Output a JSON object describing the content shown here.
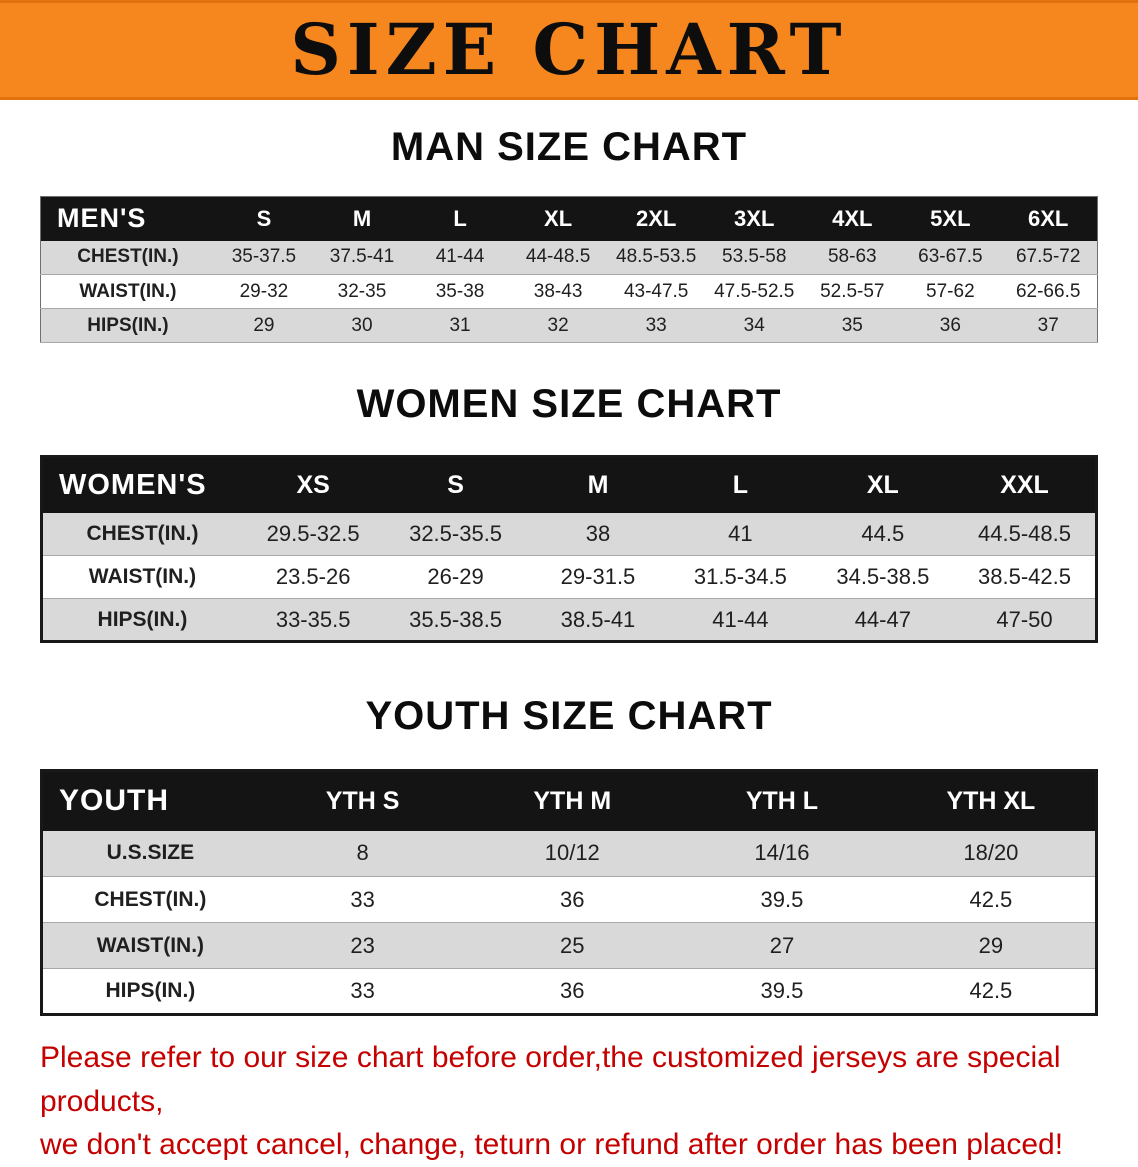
{
  "banner": {
    "title": "SIZE CHART"
  },
  "colors": {
    "banner-bg": "#F6861E",
    "banner-edge": "#E2720D",
    "header-bg": "#141414",
    "header-text": "#FFFFFF",
    "stripe": "#D9D9D9",
    "notice-red": "#C40000"
  },
  "sections": {
    "men": {
      "heading": "MAN SIZE CHART",
      "table": {
        "header": [
          "MEN'S",
          "S",
          "M",
          "L",
          "XL",
          "2XL",
          "3XL",
          "4XL",
          "5XL",
          "6XL"
        ],
        "rows": [
          {
            "label": "CHEST(IN.)",
            "values": [
              "35-37.5",
              "37.5-41",
              "41-44",
              "44-48.5",
              "48.5-53.5",
              "53.5-58",
              "58-63",
              "63-67.5",
              "67.5-72"
            ]
          },
          {
            "label": "WAIST(IN.)",
            "values": [
              "29-32",
              "32-35",
              "35-38",
              "38-43",
              "43-47.5",
              "47.5-52.5",
              "52.5-57",
              "57-62",
              "62-66.5"
            ]
          },
          {
            "label": "HIPS(IN.)",
            "values": [
              "29",
              "30",
              "31",
              "32",
              "33",
              "34",
              "35",
              "36",
              "37"
            ]
          }
        ]
      }
    },
    "women": {
      "heading": "WOMEN SIZE CHART",
      "table": {
        "header": [
          "WOMEN'S",
          "XS",
          "S",
          "M",
          "L",
          "XL",
          "XXL"
        ],
        "rows": [
          {
            "label": "CHEST(IN.)",
            "values": [
              "29.5-32.5",
              "32.5-35.5",
              "38",
              "41",
              "44.5",
              "44.5-48.5"
            ]
          },
          {
            "label": "WAIST(IN.)",
            "values": [
              "23.5-26",
              "26-29",
              "29-31.5",
              "31.5-34.5",
              "34.5-38.5",
              "38.5-42.5"
            ]
          },
          {
            "label": "HIPS(IN.)",
            "values": [
              "33-35.5",
              "35.5-38.5",
              "38.5-41",
              "41-44",
              "44-47",
              "47-50"
            ]
          }
        ]
      }
    },
    "youth": {
      "heading": "YOUTH SIZE CHART",
      "table": {
        "header": [
          "YOUTH",
          "YTH S",
          "YTH M",
          "YTH L",
          "YTH XL"
        ],
        "rows": [
          {
            "label": "U.S.SIZE",
            "values": [
              "8",
              "10/12",
              "14/16",
              "18/20"
            ]
          },
          {
            "label": "CHEST(IN.)",
            "values": [
              "33",
              "36",
              "39.5",
              "42.5"
            ]
          },
          {
            "label": "WAIST(IN.)",
            "values": [
              "23",
              "25",
              "27",
              "29"
            ]
          },
          {
            "label": "HIPS(IN.)",
            "values": [
              "33",
              "36",
              "39.5",
              "42.5"
            ]
          }
        ]
      }
    }
  },
  "footer": {
    "line1": "Please refer to our size chart before order,the customized jerseys are special products,",
    "line2": "we don't accept cancel, change, teturn or refund after order has been placed!"
  }
}
